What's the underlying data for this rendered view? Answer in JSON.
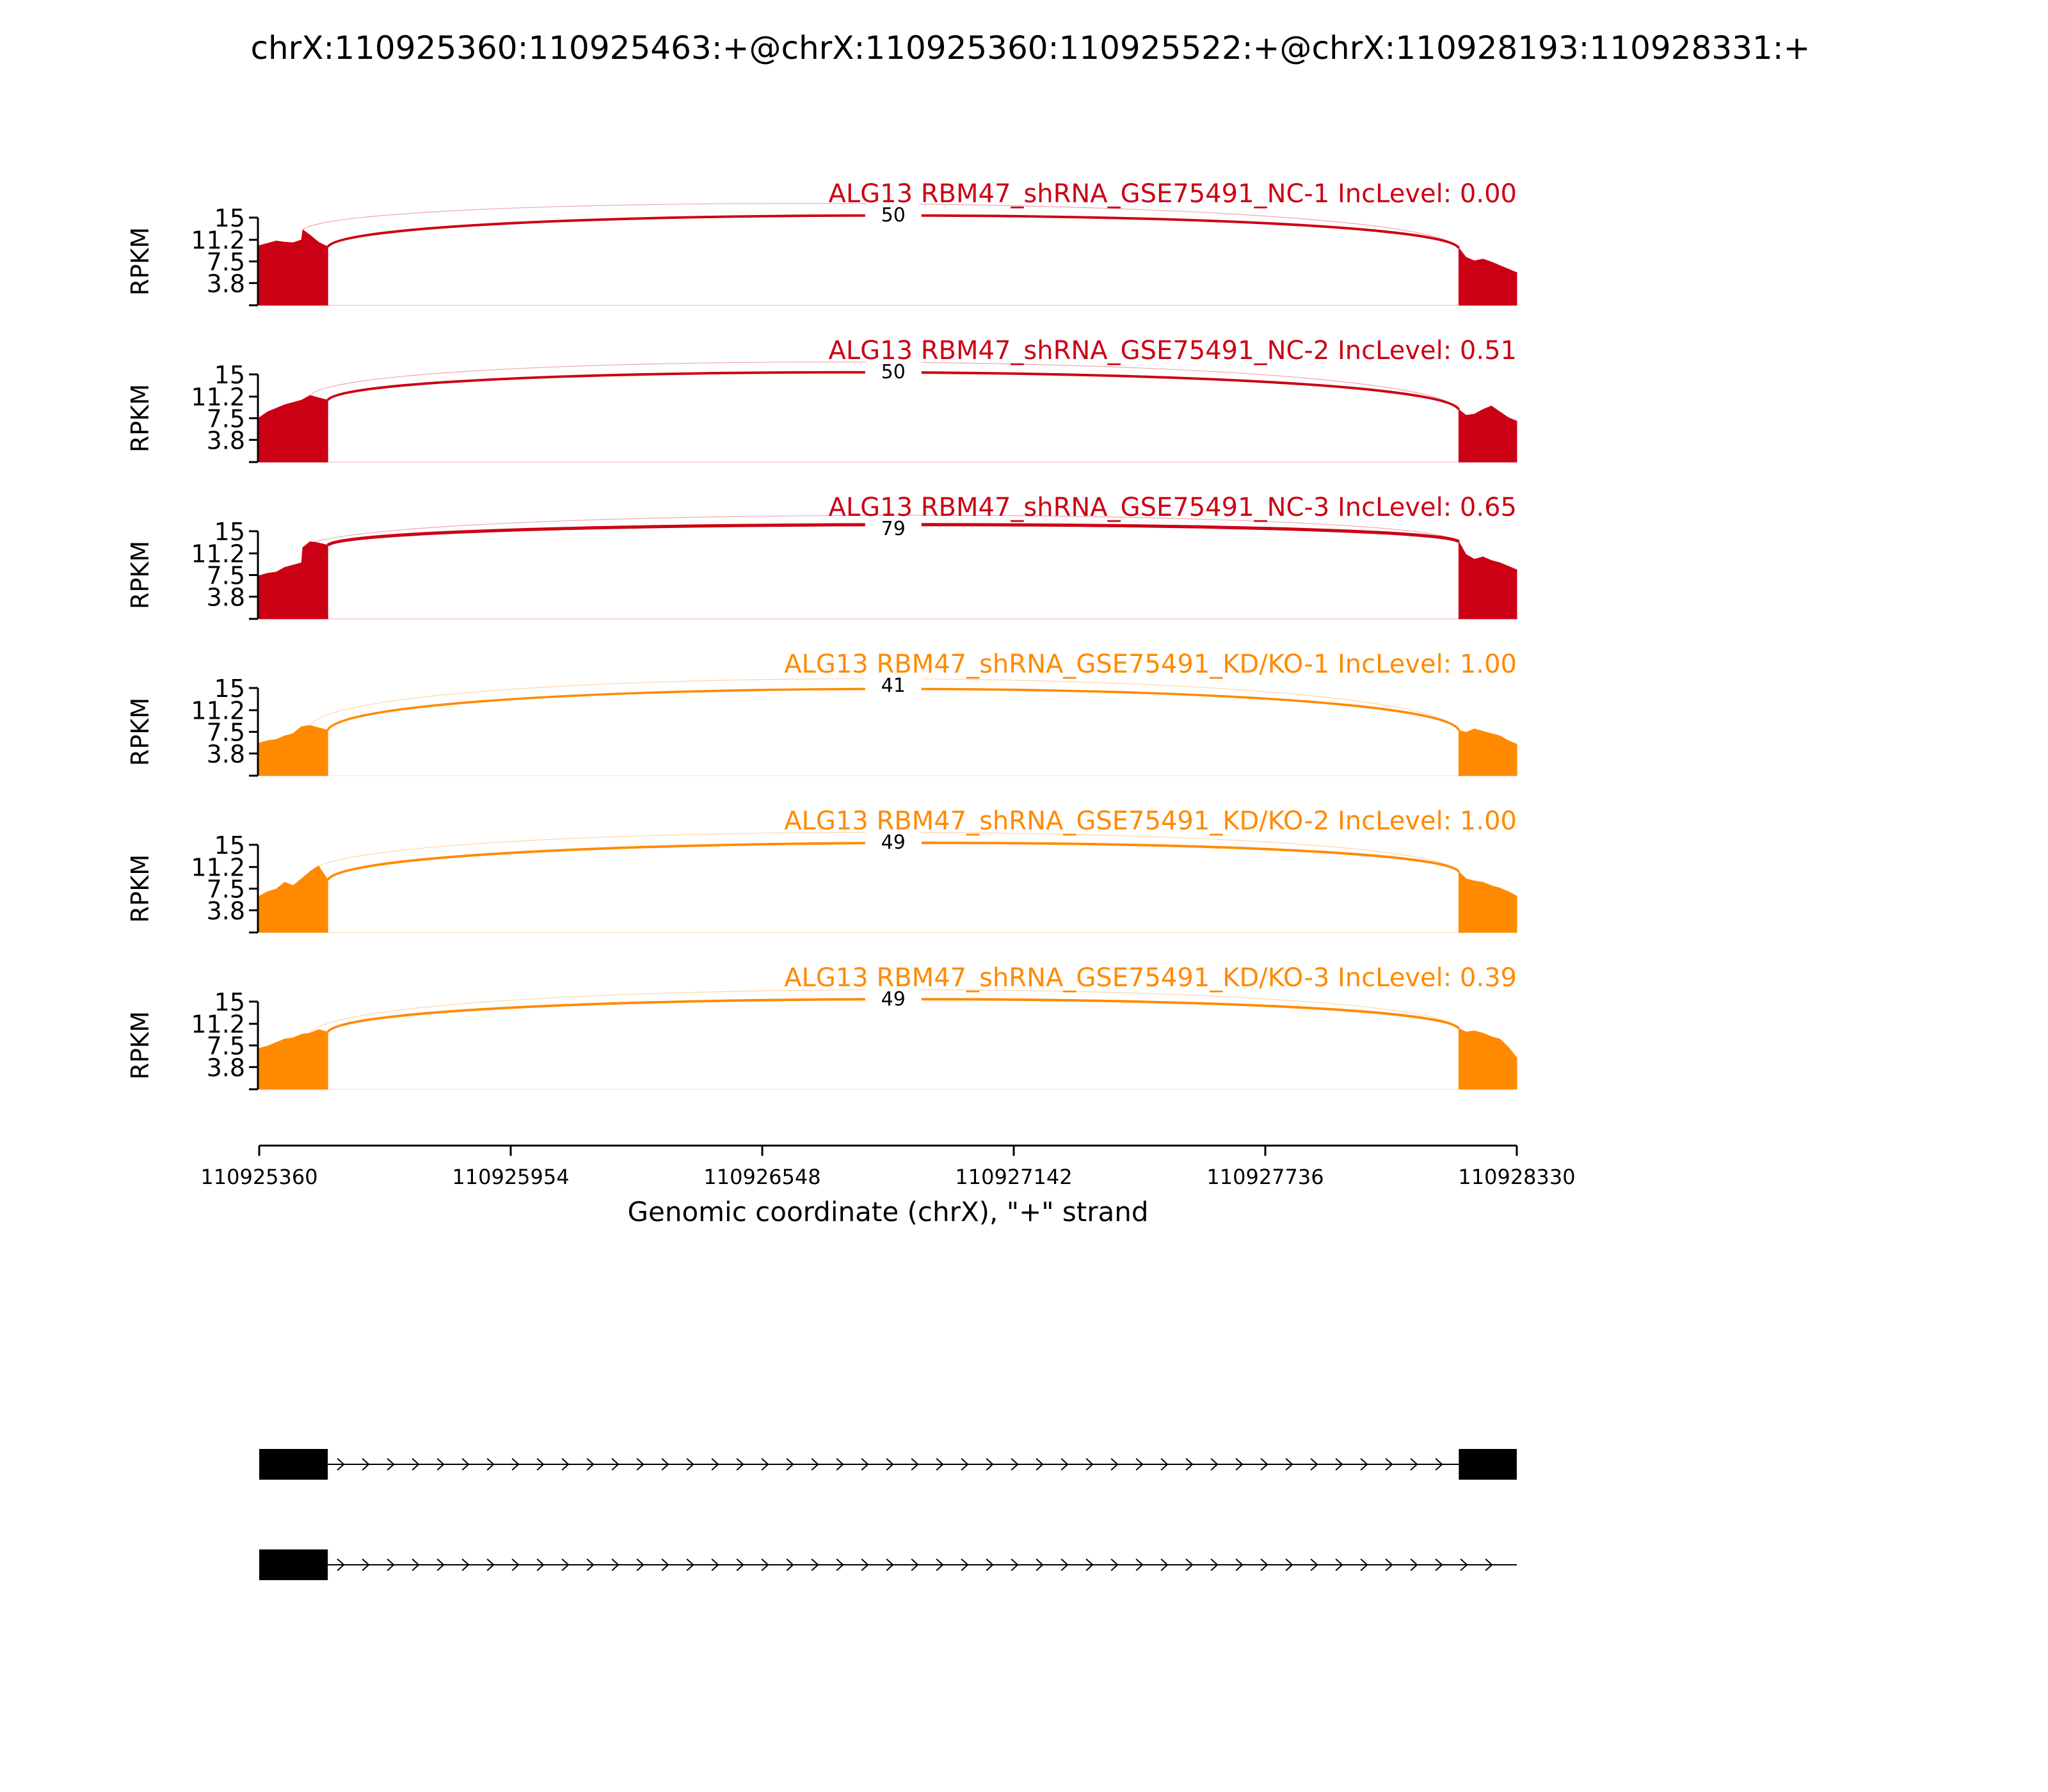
{
  "title": "chrX:110925360:110925463:+@chrX:110925360:110925522:+@chrX:110928193:110928331:+",
  "colors": {
    "nc": "#cc0014",
    "kd": "#ff8a00",
    "axis": "#000000",
    "gene": "#000000"
  },
  "chart_data": {
    "type": "area",
    "title": "chrX:110925360:110925463:+@chrX:110925360:110925522:+@chrX:110928193:110928331:+",
    "xlabel": "Genomic coordinate (chrX), \"+\" strand",
    "ylabel": "RPKM",
    "xlim": [
      110925360,
      110928330
    ],
    "x_ticks": [
      "110925360",
      "110925954",
      "110926548",
      "110927142",
      "110927736",
      "110928330"
    ],
    "ylim": [
      0,
      15
    ],
    "y_ticks": [
      "15",
      "11.2",
      "7.5",
      "3.8"
    ],
    "exons": [
      {
        "start": 110925360,
        "end": 110925522
      },
      {
        "start": 110928193,
        "end": 110928330
      }
    ],
    "tracks": [
      {
        "label": "ALG13 RBM47_shRNA_GSE75491_NC-1 IncLevel: 0.00",
        "group": "nc",
        "junction_count": "50",
        "exon1_x": [
          110925360,
          110925380,
          110925400,
          110925420,
          110925440,
          110925460,
          110925463,
          110925480,
          110925500,
          110925522
        ],
        "exon1_y": [
          10.2,
          10.6,
          11.0,
          10.8,
          10.7,
          11.2,
          12.9,
          12.0,
          10.8,
          10.0
        ],
        "exon2_x": [
          110928193,
          110928210,
          110928230,
          110928250,
          110928270,
          110928290,
          110928310,
          110928330
        ],
        "exon2_y": [
          9.8,
          8.2,
          7.6,
          7.9,
          7.4,
          6.8,
          6.2,
          5.6
        ]
      },
      {
        "label": "ALG13 RBM47_shRNA_GSE75491_NC-2 IncLevel: 0.51",
        "group": "nc",
        "junction_count": "50",
        "exon1_x": [
          110925360,
          110925380,
          110925400,
          110925420,
          110925440,
          110925460,
          110925480,
          110925500,
          110925522
        ],
        "exon1_y": [
          7.6,
          8.6,
          9.2,
          9.8,
          10.2,
          10.6,
          11.4,
          11.0,
          10.6
        ],
        "exon2_x": [
          110928193,
          110928210,
          110928230,
          110928250,
          110928270,
          110928290,
          110928310,
          110928330
        ],
        "exon2_y": [
          9.0,
          8.0,
          8.2,
          9.0,
          9.6,
          8.6,
          7.6,
          7.0
        ]
      },
      {
        "label": "ALG13 RBM47_shRNA_GSE75491_NC-3 IncLevel: 0.65",
        "group": "nc",
        "junction_count": "79",
        "exon1_x": [
          110925360,
          110925380,
          110925400,
          110925420,
          110925440,
          110925460,
          110925463,
          110925480,
          110925500,
          110925522
        ],
        "exon1_y": [
          7.4,
          7.8,
          8.0,
          8.8,
          9.2,
          9.6,
          12.2,
          13.2,
          13.0,
          12.6
        ],
        "exon2_x": [
          110928193,
          110928210,
          110928230,
          110928250,
          110928270,
          110928290,
          110928310,
          110928330
        ],
        "exon2_y": [
          13.2,
          11.0,
          10.2,
          10.6,
          10.0,
          9.6,
          9.0,
          8.4
        ]
      },
      {
        "label": "ALG13 RBM47_shRNA_GSE75491_KD/KO-1 IncLevel: 1.00",
        "group": "kd",
        "junction_count": "41",
        "exon1_x": [
          110925360,
          110925380,
          110925400,
          110925420,
          110925440,
          110925460,
          110925480,
          110925500,
          110925522
        ],
        "exon1_y": [
          5.6,
          6.0,
          6.2,
          6.8,
          7.2,
          8.4,
          8.6,
          8.2,
          7.8
        ],
        "exon2_x": [
          110928193,
          110928210,
          110928230,
          110928250,
          110928270,
          110928290,
          110928310,
          110928330
        ],
        "exon2_y": [
          7.8,
          7.4,
          8.0,
          7.6,
          7.2,
          6.8,
          6.0,
          5.4
        ]
      },
      {
        "label": "ALG13 RBM47_shRNA_GSE75491_KD/KO-2 IncLevel: 1.00",
        "group": "kd",
        "junction_count": "49",
        "exon1_x": [
          110925360,
          110925380,
          110925400,
          110925420,
          110925440,
          110925460,
          110925480,
          110925500,
          110925522
        ],
        "exon1_y": [
          6.2,
          7.0,
          7.4,
          8.6,
          8.0,
          9.2,
          10.4,
          11.4,
          9.0
        ],
        "exon2_x": [
          110928193,
          110928210,
          110928230,
          110928250,
          110928270,
          110928290,
          110928310,
          110928330
        ],
        "exon2_y": [
          10.4,
          9.2,
          8.8,
          8.6,
          8.0,
          7.6,
          7.0,
          6.2
        ]
      },
      {
        "label": "ALG13 RBM47_shRNA_GSE75491_KD/KO-3 IncLevel: 0.39",
        "group": "kd",
        "junction_count": "49",
        "exon1_x": [
          110925360,
          110925380,
          110925400,
          110925420,
          110925440,
          110925460,
          110925480,
          110925500,
          110925522
        ],
        "exon1_y": [
          7.0,
          7.4,
          8.0,
          8.6,
          8.8,
          9.4,
          9.6,
          10.2,
          9.8
        ],
        "exon2_x": [
          110928193,
          110928210,
          110928230,
          110928250,
          110928270,
          110928290,
          110928310,
          110928330
        ],
        "exon2_y": [
          10.4,
          9.8,
          10.0,
          9.6,
          9.0,
          8.6,
          7.2,
          5.4
        ]
      }
    ],
    "isoforms": [
      {
        "exons": [
          [
            110925360,
            110925522
          ],
          [
            110928193,
            110928330
          ]
        ]
      },
      {
        "exons": [
          [
            110925360,
            110925522
          ]
        ]
      }
    ]
  }
}
